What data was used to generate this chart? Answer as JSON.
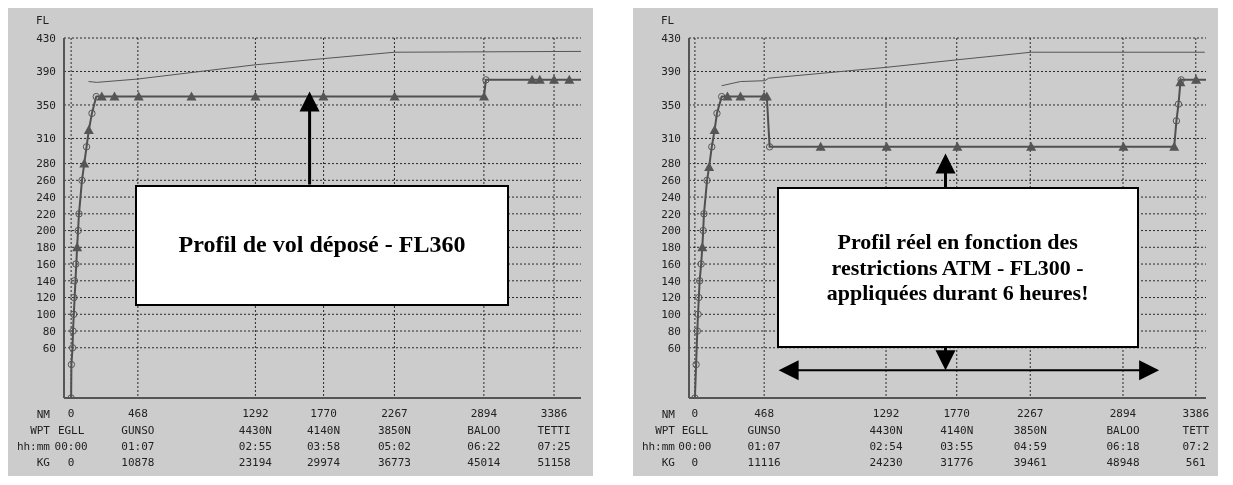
{
  "chart_data": [
    {
      "type": "line",
      "ylabel": "FL",
      "xlabel": "NM",
      "grid": true,
      "xlim": [
        -50,
        3575
      ],
      "ylim": [
        0,
        430
      ],
      "annotations": [
        "Profil de vol déposé - FL360",
        "WPT",
        "EGLL",
        "GUNSO",
        "4430N",
        "4140N",
        "3850N",
        "BALOO",
        "TETTI",
        "hh:mm",
        "00:00",
        "01:07",
        "02:55",
        "03:58",
        "05:02",
        "06:22",
        "07:25",
        "KG",
        "0",
        "10878",
        "23194",
        "29974",
        "36773",
        "45014",
        "51158"
      ],
      "xticks": [
        0,
        468,
        1292,
        1770,
        2267,
        2894,
        3386
      ],
      "yticks": [
        60,
        80,
        100,
        120,
        140,
        160,
        180,
        200,
        220,
        240,
        260,
        280,
        310,
        350,
        390,
        430
      ],
      "series": [
        {
          "type": "line",
          "color": "#555555",
          "marker": "none",
          "line_style": "solid",
          "x": [
            122,
            180,
            468,
            1292,
            2267,
            3575
          ],
          "values": [
            378,
            377,
            381,
            398,
            413,
            414
          ]
        },
        {
          "type": "line",
          "color": "#505050",
          "marker": "none",
          "line_style": "solid",
          "x": [
            0,
            2,
            10,
            13,
            42,
            55,
            76,
            92,
            108,
            124,
            146,
            176,
            215,
            304,
            474,
            844,
            1292,
            1769,
            2268,
            2895,
            2908,
            3232,
            3286,
            3386,
            3493,
            3575
          ],
          "values": [
            0,
            40,
            60,
            80,
            180,
            220,
            260,
            280,
            300,
            320,
            340,
            360,
            360,
            360,
            360,
            360,
            360,
            360,
            360,
            360,
            380,
            380,
            380,
            380,
            380,
            380
          ]
        },
        {
          "type": "scatter",
          "color": "#555555",
          "marker": "circle",
          "x": [
            0,
            2,
            10,
            13,
            18,
            20,
            23,
            33,
            50,
            55,
            76,
            108,
            146,
            176,
            2908
          ],
          "values": [
            0,
            40,
            60,
            80,
            100,
            120,
            140,
            160,
            200,
            220,
            260,
            300,
            340,
            360,
            380
          ]
        },
        {
          "type": "scatter",
          "color": "#555555",
          "marker": "triangle",
          "x": [
            42,
            92,
            124,
            215,
            304,
            474,
            844,
            1292,
            1769,
            2268,
            2895,
            3232,
            3286,
            3386,
            3493
          ],
          "values": [
            180,
            280,
            320,
            360,
            360,
            360,
            360,
            360,
            360,
            360,
            360,
            380,
            380,
            380,
            380
          ]
        }
      ]
    },
    {
      "type": "line",
      "ylabel": "FL",
      "xlabel": "NM",
      "grid": true,
      "xlim": [
        -40,
        3455
      ],
      "ylim": [
        0,
        430
      ],
      "annotations": [
        "Profil réel en fonction des restrictions ATM - FL300 - appliquées durant 6 heures!",
        "WPT",
        "EGLL",
        "GUNSO",
        "4430N",
        "4140N",
        "3850N",
        "BALOO",
        "TETT",
        "hh:mm",
        "00:00",
        "01:07",
        "02:54",
        "03:55",
        "04:59",
        "06:18",
        "07:2",
        "KG",
        "0",
        "11116",
        "24230",
        "31776",
        "39461",
        "48948",
        "561"
      ],
      "xticks": [
        0,
        468,
        1292,
        1770,
        2267,
        2894,
        3386
      ],
      "yticks": [
        60,
        80,
        100,
        120,
        140,
        160,
        180,
        200,
        220,
        240,
        260,
        280,
        310,
        350,
        390,
        430
      ],
      "series": [
        {
          "type": "line",
          "color": "#555555",
          "marker": "none",
          "line_style": "solid",
          "x": [
            181,
            308,
            473,
            499,
            1296,
            1774,
            2273,
            3447
          ],
          "values": [
            373,
            378,
            379,
            382,
            395,
            404,
            413,
            413
          ]
        },
        {
          "type": "line",
          "color": "#505050",
          "marker": "none",
          "line_style": "solid",
          "x": [
            0,
            8,
            16,
            21,
            32,
            42,
            50,
            56,
            61,
            82,
            96,
            114,
            133,
            149,
            181,
            220,
            308,
            467,
            486,
            505,
            850,
            1296,
            1774,
            2273,
            2897,
            3240,
            3255,
            3269,
            3282,
            3287,
            3388,
            3455
          ],
          "values": [
            0,
            40,
            80,
            100,
            140,
            160,
            180,
            200,
            220,
            260,
            276,
            300,
            320,
            340,
            360,
            360,
            360,
            360,
            360,
            300,
            300,
            300,
            300,
            300,
            300,
            300,
            331,
            351,
            377,
            380,
            380,
            380
          ]
        },
        {
          "type": "scatter",
          "color": "#555555",
          "marker": "circle",
          "x": [
            0,
            8,
            16,
            21,
            26,
            32,
            42,
            56,
            61,
            82,
            114,
            149,
            181,
            505,
            3255,
            3269,
            3287
          ],
          "values": [
            0,
            40,
            80,
            100,
            120,
            140,
            160,
            200,
            220,
            260,
            300,
            340,
            360,
            300,
            331,
            351,
            380
          ]
        },
        {
          "type": "scatter",
          "color": "#555555",
          "marker": "triangle",
          "x": [
            50,
            96,
            133,
            220,
            308,
            467,
            486,
            850,
            1296,
            1774,
            2273,
            2897,
            3240,
            3282,
            3388
          ],
          "values": [
            180,
            276,
            320,
            360,
            360,
            360,
            360,
            300,
            300,
            300,
            300,
            300,
            300,
            377,
            380
          ]
        }
      ]
    }
  ]
}
